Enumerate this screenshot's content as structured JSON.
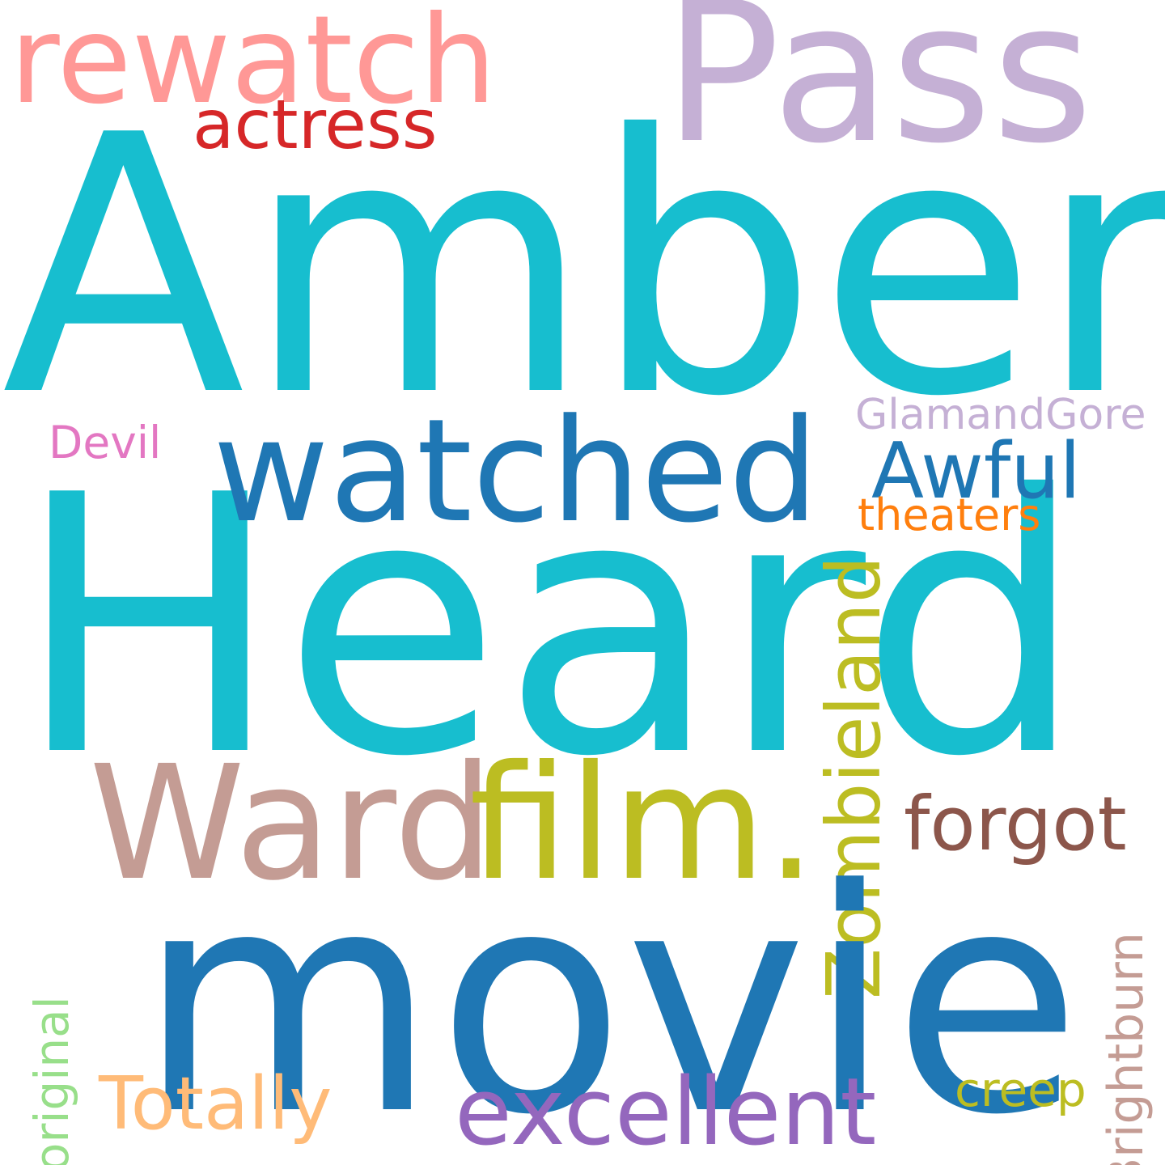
{
  "colors": {
    "background": "#ffffff"
  },
  "words": [
    {
      "id": "amber",
      "text": "Amber",
      "color": "#17becf"
    },
    {
      "id": "heard",
      "text": "Heard",
      "color": "#17becf"
    },
    {
      "id": "pass",
      "text": "Pass",
      "color": "#c5b0d5"
    },
    {
      "id": "rewatch",
      "text": "rewatch",
      "color": "#ff9896"
    },
    {
      "id": "actress",
      "text": "actress",
      "color": "#d62728"
    },
    {
      "id": "watched",
      "text": "watched",
      "color": "#1f77b4"
    },
    {
      "id": "glamandgore",
      "text": "GlamandGore",
      "color": "#c5b0d5"
    },
    {
      "id": "awful",
      "text": "Awful",
      "color": "#1f77b4"
    },
    {
      "id": "theaters",
      "text": "theaters",
      "color": "#ff7f0e"
    },
    {
      "id": "devil",
      "text": "Devil",
      "color": "#e377c2"
    },
    {
      "id": "ward",
      "text": "Ward",
      "color": "#c49c94"
    },
    {
      "id": "film",
      "text": "film.",
      "color": "#bcbd22"
    },
    {
      "id": "zombieland",
      "text": "Zombieland",
      "color": "#bcbd22"
    },
    {
      "id": "forgot",
      "text": "forgot",
      "color": "#8c564b"
    },
    {
      "id": "movie",
      "text": "movie",
      "color": "#1f77b4"
    },
    {
      "id": "brightburn",
      "text": "Brightburn",
      "color": "#c49c94"
    },
    {
      "id": "original",
      "text": "original",
      "color": "#98df8a"
    },
    {
      "id": "totally",
      "text": "Totally",
      "color": "#ffbb78"
    },
    {
      "id": "excellent",
      "text": "excellent",
      "color": "#9467bd"
    },
    {
      "id": "creep",
      "text": "creep",
      "color": "#bcbd22"
    }
  ]
}
